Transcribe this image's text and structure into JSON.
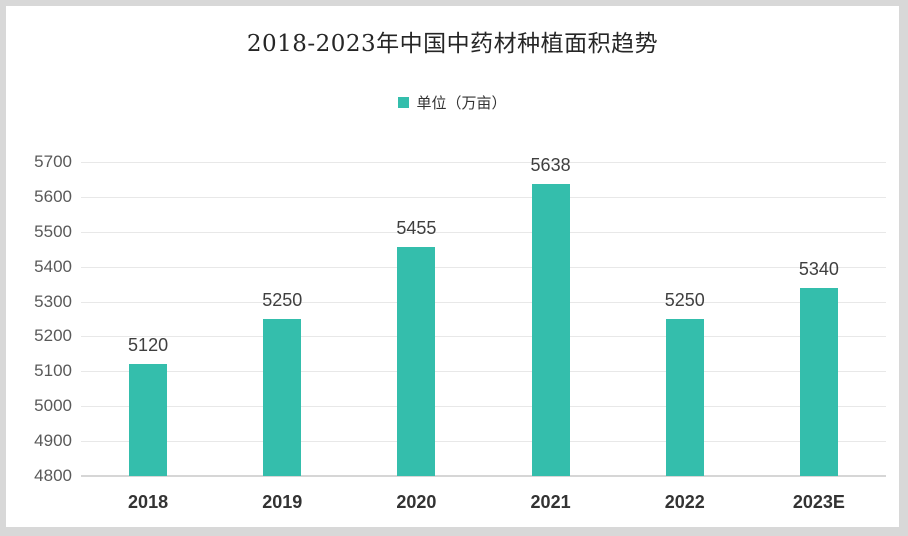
{
  "title": "2018-2023年中国中药材种植面积趋势",
  "legend": {
    "label": "单位（万亩）",
    "swatch_color": "#34beac"
  },
  "colors": {
    "bar": "#34beac",
    "gridline": "#e8e8e8",
    "axis_line": "#d6d6d6",
    "y_label": "#595959",
    "x_label": "#333333",
    "value_label": "#3f3f3f",
    "title": "#262626",
    "frame_border": "#d8d8d8",
    "background": "#ffffff"
  },
  "chart_data": {
    "type": "bar",
    "title": "2018-2023年中国中药材种植面积趋势",
    "categories": [
      "2018",
      "2019",
      "2020",
      "2021",
      "2022",
      "2023E"
    ],
    "values": [
      5120,
      5250,
      5455,
      5638,
      5250,
      5340
    ],
    "series_name": "单位（万亩）",
    "xlabel": "",
    "ylabel": "",
    "ylim": [
      4800,
      5700
    ],
    "ytick_step": 100,
    "ytick_labels": [
      "4800",
      "4900",
      "5000",
      "5100",
      "5200",
      "5300",
      "5400",
      "5500",
      "5600",
      "5700"
    ],
    "grid": true,
    "legend_position": "top-center",
    "bar_color": "#34beac",
    "data_labels_shown": true
  }
}
